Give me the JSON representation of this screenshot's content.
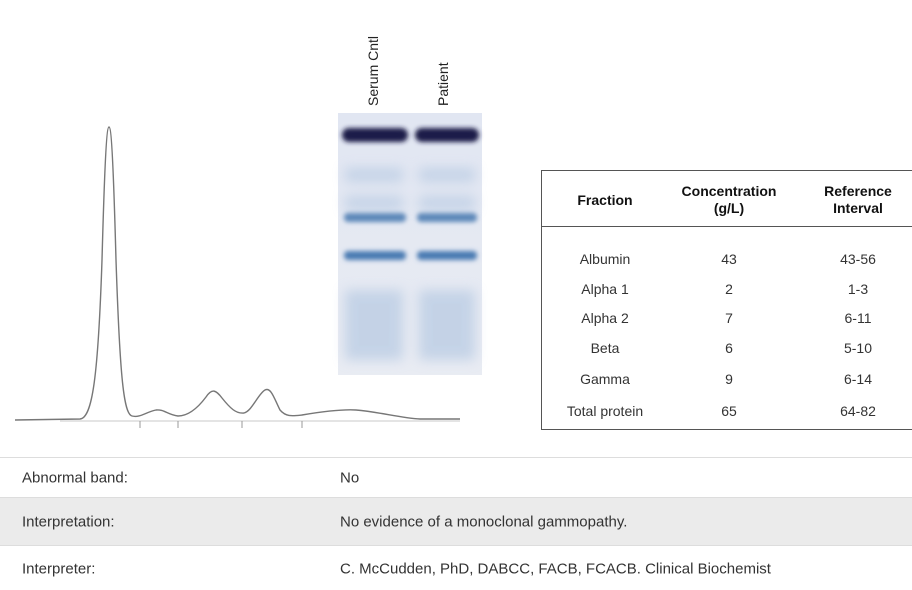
{
  "gel": {
    "lanes": [
      "Serum Cntl",
      "Patient"
    ]
  },
  "fraction_table": {
    "headers": [
      "Fraction",
      "Concentration (g/L)",
      "Reference Interval"
    ],
    "rows": [
      [
        "Albumin",
        "43",
        "43-56"
      ],
      [
        "Alpha 1",
        "2",
        "1-3"
      ],
      [
        "Alpha 2",
        "7",
        "6-11"
      ],
      [
        "Beta",
        "6",
        "5-10"
      ],
      [
        "Gamma",
        "9",
        "6-14"
      ],
      [
        "Total protein",
        "65",
        "64-82"
      ]
    ]
  },
  "summary": {
    "rows": [
      [
        "Abnormal band:",
        "No"
      ],
      [
        "Interpretation:",
        "No evidence of a monoclonal gammopathy."
      ],
      [
        "Interpreter:",
        "C. McCudden, PhD, DABCC, FACB, FCACB. Clinical Biochemist"
      ]
    ]
  }
}
